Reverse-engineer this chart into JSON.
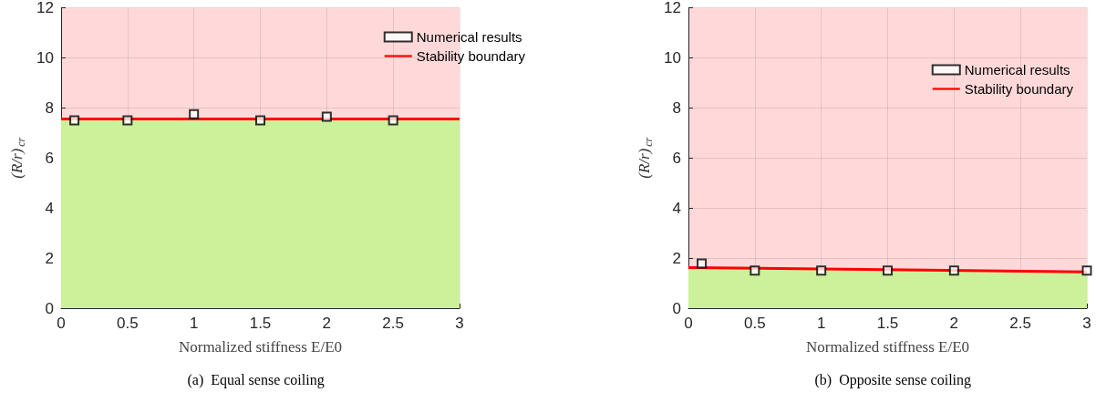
{
  "chart_data": [
    {
      "type": "scatter",
      "xlabel": "Normalized stiffness E/E0",
      "ylabel": "(R/r)$_{cr}$",
      "annotations": [
        "(a)  Equal sense coiling"
      ],
      "xlim": [
        0,
        3
      ],
      "xticks": [
        0,
        0.5,
        1,
        1.5,
        2,
        2.5,
        3
      ],
      "ylim": [
        0,
        12
      ],
      "yticks": [
        0,
        2,
        4,
        6,
        8,
        10,
        12
      ],
      "grid": true,
      "legend": "top right",
      "bands": [
        {
          "axis": "y",
          "from": 0,
          "to": 12,
          "color": "#ffd9d9"
        }
      ],
      "series": [
        {
          "type": "area",
          "color": "#cdf09a",
          "x": [
            0,
            3
          ],
          "values": [
            7.56,
            7.56
          ]
        },
        {
          "name": "Numerical results",
          "marker": "square",
          "color": "#000000",
          "x": [
            0.1,
            0.5,
            1,
            1.5,
            2,
            2.5
          ],
          "values": [
            7.5,
            7.5,
            7.75,
            7.5,
            7.65,
            7.5
          ]
        },
        {
          "name": "Stability boundary",
          "type": "line",
          "marker": "none",
          "color": "#ff0000",
          "x": [
            0,
            3
          ],
          "values": [
            7.56,
            7.56
          ]
        }
      ]
    },
    {
      "type": "scatter",
      "xlabel": "Normalized stiffness E/E0",
      "ylabel": "(R/r)$_{cr}$",
      "annotations": [
        "(b)  Opposite sense coiling"
      ],
      "xlim": [
        0,
        3
      ],
      "xticks": [
        0,
        0.5,
        1,
        1.5,
        2,
        2.5,
        3
      ],
      "ylim": [
        0,
        12
      ],
      "yticks": [
        0,
        2,
        4,
        6,
        8,
        10,
        12
      ],
      "grid": true,
      "legend": "top right",
      "bands": [
        {
          "axis": "y",
          "from": 0,
          "to": 12,
          "color": "#ffd9d9"
        }
      ],
      "series": [
        {
          "type": "area",
          "color": "#cdf09a",
          "x": [
            0,
            3
          ],
          "values": [
            1.62,
            1.45
          ]
        },
        {
          "name": "Numerical results",
          "marker": "square",
          "color": "#000000",
          "x": [
            0.1,
            0.5,
            1,
            1.5,
            2,
            3
          ],
          "values": [
            1.78,
            1.5,
            1.5,
            1.5,
            1.5,
            1.5
          ]
        },
        {
          "name": "Stability boundary",
          "type": "line",
          "marker": "none",
          "color": "#ff0000",
          "x": [
            0,
            3
          ],
          "values": [
            1.62,
            1.45
          ]
        }
      ]
    }
  ]
}
